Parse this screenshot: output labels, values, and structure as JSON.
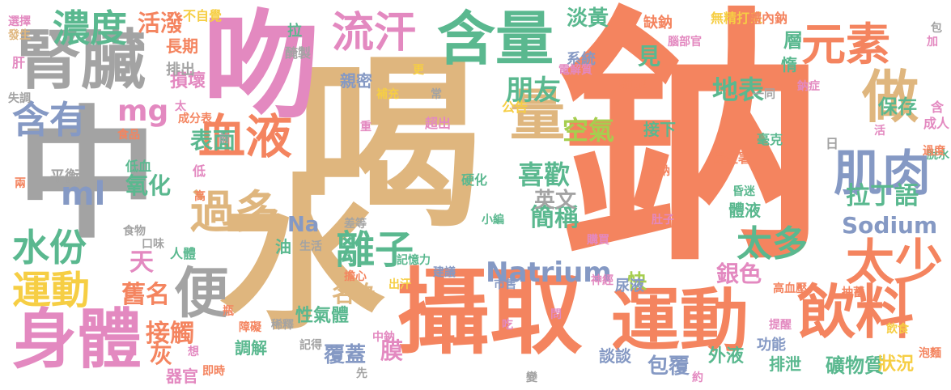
{
  "palette": {
    "orange": "#f4845f",
    "tan": "#dfb67e",
    "green": "#5ab88f",
    "gray": "#a3a3a3",
    "pink": "#e389c0",
    "blue": "#8599c4",
    "lime": "#a6ce4f",
    "yellow": "#f6ce44",
    "background": "#ffffff"
  },
  "words": [
    {
      "text": "鈉",
      "color": "orange"
    },
    {
      "text": "喝",
      "color": "tan"
    },
    {
      "text": "水",
      "color": "tan"
    },
    {
      "text": "中",
      "color": "gray"
    },
    {
      "text": "吻",
      "color": "pink"
    },
    {
      "text": "攝取",
      "color": "orange"
    },
    {
      "text": "運動",
      "color": "orange"
    },
    {
      "text": "飲料",
      "color": "orange"
    },
    {
      "text": "含量",
      "color": "green"
    },
    {
      "text": "腎臟",
      "color": "gray"
    },
    {
      "text": "身體",
      "color": "pink"
    },
    {
      "text": "元素",
      "color": "orange"
    },
    {
      "text": "流汗",
      "color": "pink"
    },
    {
      "text": "濃度",
      "color": "green"
    },
    {
      "text": "血液",
      "color": "orange"
    },
    {
      "text": "肌肉",
      "color": "blue"
    },
    {
      "text": "做",
      "color": "tan"
    },
    {
      "text": "便",
      "color": "gray"
    },
    {
      "text": "太少",
      "color": "orange"
    },
    {
      "text": "量",
      "color": "tan"
    },
    {
      "text": "過多",
      "color": "tan"
    },
    {
      "text": "運動",
      "color": "yellow"
    },
    {
      "text": "含有",
      "color": "blue"
    },
    {
      "text": "水份",
      "color": "green"
    },
    {
      "text": "離子",
      "color": "green"
    },
    {
      "text": "太多",
      "color": "green"
    },
    {
      "text": "ml",
      "color": "blue"
    },
    {
      "text": "mg",
      "color": "pink"
    },
    {
      "text": "Natrium",
      "color": "blue"
    },
    {
      "text": "Sodium",
      "color": "blue"
    },
    {
      "text": "朋友",
      "color": "green"
    },
    {
      "text": "地表",
      "color": "green"
    },
    {
      "text": "拉丁語",
      "color": "green"
    },
    {
      "text": "喜歡",
      "color": "green"
    },
    {
      "text": "簡稱",
      "color": "green"
    },
    {
      "text": "空氣",
      "color": "lime"
    },
    {
      "text": "表面",
      "color": "green"
    },
    {
      "text": "氧化",
      "color": "green"
    },
    {
      "text": "天",
      "color": "pink"
    },
    {
      "text": "舊名",
      "color": "orange"
    },
    {
      "text": "接觸",
      "color": "orange"
    },
    {
      "text": "灰",
      "color": "orange"
    },
    {
      "text": "名為",
      "color": "tan"
    },
    {
      "text": "英文",
      "color": "gray"
    },
    {
      "text": "銀色",
      "color": "pink"
    },
    {
      "text": "保存",
      "color": "green"
    },
    {
      "text": "活潑",
      "color": "orange"
    },
    {
      "text": "淡黃",
      "color": "green"
    },
    {
      "text": "見",
      "color": "green"
    },
    {
      "text": "層",
      "color": "green"
    },
    {
      "text": "惰",
      "color": "green"
    },
    {
      "text": "Na",
      "color": "blue"
    },
    {
      "text": "油",
      "color": "green"
    },
    {
      "text": "覆蓋",
      "color": "blue"
    },
    {
      "text": "膜",
      "color": "pink"
    },
    {
      "text": "包覆",
      "color": "blue"
    },
    {
      "text": "談談",
      "color": "blue"
    },
    {
      "text": "礦物質",
      "color": "green"
    },
    {
      "text": "狀況",
      "color": "yellow"
    },
    {
      "text": "外液",
      "color": "green"
    },
    {
      "text": "排泄",
      "color": "green"
    },
    {
      "text": "功能",
      "color": "blue"
    },
    {
      "text": "體液",
      "color": "green"
    },
    {
      "text": "快",
      "color": "lime"
    },
    {
      "text": "尿液",
      "color": "blue"
    },
    {
      "text": "接下",
      "color": "green"
    },
    {
      "text": "調解",
      "color": "green"
    },
    {
      "text": "器官",
      "color": "pink"
    },
    {
      "text": "性氣體",
      "color": "green"
    },
    {
      "text": "損壞",
      "color": "pink"
    },
    {
      "text": "親密",
      "color": "blue"
    },
    {
      "text": "系統",
      "color": "blue"
    },
    {
      "text": "細胞",
      "color": "orange"
    },
    {
      "text": "缺鈉",
      "color": "orange"
    },
    {
      "text": "無精打采",
      "color": "yellow"
    },
    {
      "text": "體內鈉",
      "color": "orange"
    },
    {
      "text": "拉",
      "color": "green"
    },
    {
      "text": "不自覺",
      "color": "yellow"
    },
    {
      "text": "醃製",
      "color": "gray"
    },
    {
      "text": "長期",
      "color": "orange"
    },
    {
      "text": "排出",
      "color": "gray"
    },
    {
      "text": "選擇",
      "color": "pink"
    },
    {
      "text": "發生",
      "color": "tan"
    },
    {
      "text": "肝",
      "color": "pink"
    },
    {
      "text": "失調",
      "color": "gray"
    },
    {
      "text": "平衡",
      "color": "gray"
    },
    {
      "text": "低血",
      "color": "green"
    },
    {
      "text": "低",
      "color": "pink"
    },
    {
      "text": "兩",
      "color": "orange"
    },
    {
      "text": "成分表",
      "color": "orange"
    },
    {
      "text": "食品",
      "color": "orange"
    },
    {
      "text": "前",
      "color": "gray"
    },
    {
      "text": "高",
      "color": "orange"
    },
    {
      "text": "人體",
      "color": "green"
    },
    {
      "text": "食物",
      "color": "gray"
    },
    {
      "text": "口味",
      "color": "gray"
    },
    {
      "text": "生活",
      "color": "gray"
    },
    {
      "text": "差等",
      "color": "gray"
    },
    {
      "text": "擔心",
      "color": "orange"
    },
    {
      "text": "建議",
      "color": "blue"
    },
    {
      "text": "出汗",
      "color": "yellow"
    },
    {
      "text": "記憶力",
      "color": "green"
    },
    {
      "text": "硬化",
      "color": "green"
    },
    {
      "text": "小編",
      "color": "green"
    },
    {
      "text": "購買",
      "color": "pink"
    },
    {
      "text": "肚子",
      "color": "pink"
    },
    {
      "text": "神經",
      "color": "pink"
    },
    {
      "text": "高血壓",
      "color": "orange"
    },
    {
      "text": "低鈉",
      "color": "orange"
    },
    {
      "text": "抽蓄",
      "color": "orange"
    },
    {
      "text": "提醒",
      "color": "pink"
    },
    {
      "text": "飲食",
      "color": "yellow"
    },
    {
      "text": "泡麵",
      "color": "orange"
    },
    {
      "text": "日",
      "color": "gray"
    },
    {
      "text": "脫水",
      "color": "green"
    },
    {
      "text": "過度",
      "color": "orange"
    },
    {
      "text": "活",
      "color": "pink"
    },
    {
      "text": "含",
      "color": "pink"
    },
    {
      "text": "成人",
      "color": "pink"
    },
    {
      "text": "毫克",
      "color": "green"
    },
    {
      "text": "衛生署",
      "color": "orange"
    },
    {
      "text": "公告",
      "color": "yellow"
    },
    {
      "text": "超出",
      "color": "pink"
    },
    {
      "text": "常",
      "color": "gray"
    },
    {
      "text": "重",
      "color": "pink"
    },
    {
      "text": "補充",
      "color": "yellow"
    },
    {
      "text": "更",
      "color": "yellow"
    },
    {
      "text": "電解質",
      "color": "pink"
    },
    {
      "text": "鈉症",
      "color": "pink"
    },
    {
      "text": "一同",
      "color": "gray"
    },
    {
      "text": "腦部官",
      "color": "pink"
    },
    {
      "text": "加",
      "color": "pink"
    },
    {
      "text": "包",
      "color": "gray"
    },
    {
      "text": "市售",
      "color": "blue"
    },
    {
      "text": "吃",
      "color": "pink"
    },
    {
      "text": "變",
      "color": "gray"
    },
    {
      "text": "約",
      "color": "pink"
    },
    {
      "text": "中鈉",
      "color": "pink"
    },
    {
      "text": "稀釋",
      "color": "gray"
    },
    {
      "text": "記得",
      "color": "gray"
    },
    {
      "text": "先",
      "color": "gray"
    },
    {
      "text": "想",
      "color": "pink"
    },
    {
      "text": "即時",
      "color": "orange"
    },
    {
      "text": "瓶",
      "color": "orange"
    },
    {
      "text": "障礙",
      "color": "orange"
    },
    {
      "text": "昏迷",
      "color": "green"
    },
    {
      "text": "問",
      "color": "pink"
    },
    {
      "text": "太",
      "color": "pink"
    }
  ]
}
